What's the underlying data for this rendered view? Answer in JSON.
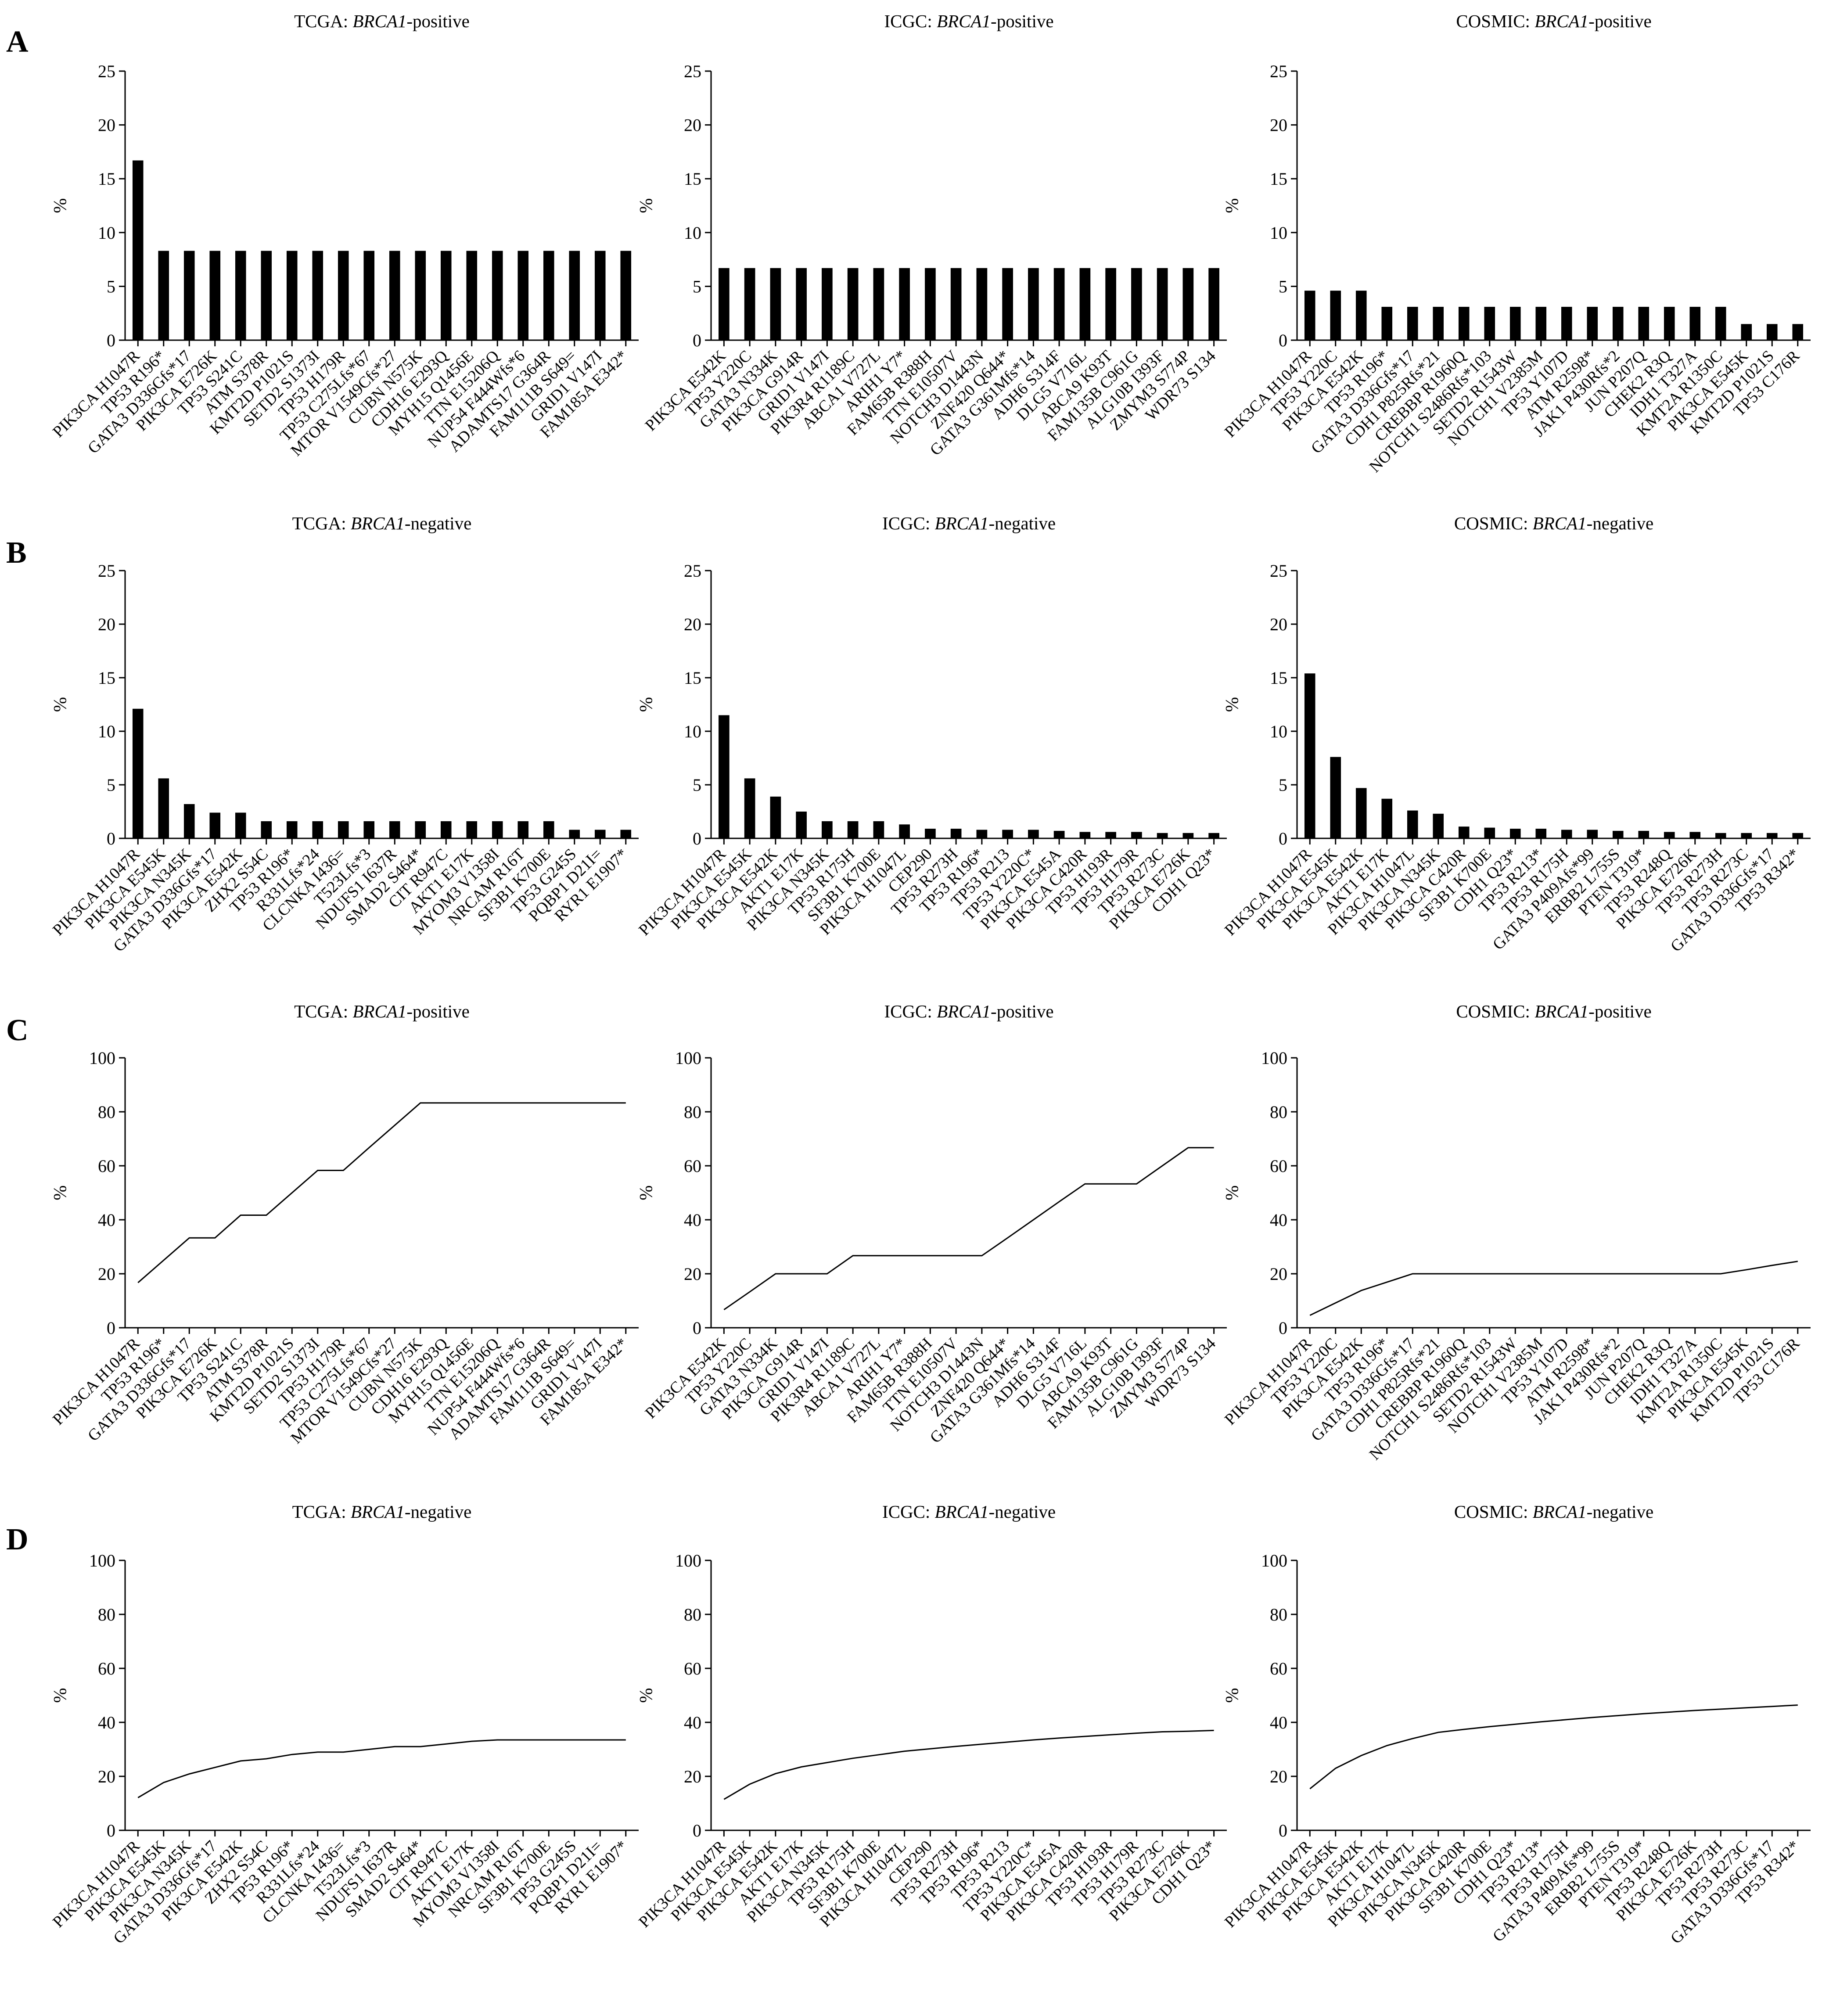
{
  "panel_labels": [
    "A",
    "B",
    "C",
    "D"
  ],
  "chart_data": [
    {
      "panel": "A",
      "type": "bar",
      "title_prefix": "TCGA: ",
      "title_gene": "BRCA1",
      "title_suffix": "-positive",
      "ylabel": "%",
      "ylim": [
        0,
        25
      ],
      "yticks": [
        0,
        5,
        10,
        15,
        20,
        25
      ],
      "categories": [
        "PIK3CA H1047R",
        "TP53 R196*",
        "GATA3 D336Gfs*17",
        "PIK3CA E726K",
        "TP53 S241C",
        "ATM S378R",
        "KMT2D P1021S",
        "SETD2 S1373I",
        "TP53 H179R",
        "TP53 C275Lfs*67",
        "MTOR V1549Cfs*27",
        "CUBN N575K",
        "CDH16 E293Q",
        "MYH15 Q1456E",
        "TTN E15206Q",
        "NUP54 F444Wfs*6",
        "ADAMTS17 G364R",
        "FAM111B S649=",
        "GRID1 V147I",
        "FAM185A E342*"
      ],
      "values": [
        16.7,
        8.3,
        8.3,
        8.3,
        8.3,
        8.3,
        8.3,
        8.3,
        8.3,
        8.3,
        8.3,
        8.3,
        8.3,
        8.3,
        8.3,
        8.3,
        8.3,
        8.3,
        8.3,
        8.3
      ]
    },
    {
      "panel": "A",
      "type": "bar",
      "title_prefix": "ICGC: ",
      "title_gene": "BRCA1",
      "title_suffix": "-positive",
      "ylabel": "%",
      "ylim": [
        0,
        25
      ],
      "yticks": [
        0,
        5,
        10,
        15,
        20,
        25
      ],
      "categories": [
        "PIK3CA E542K",
        "TP53 Y220C",
        "GATA3 N334K",
        "PIK3CA G914R",
        "GRID1 V147I",
        "PIK3R4 R1189C",
        "ABCA1 V727L",
        "ARIH1 Y7*",
        "FAM65B R388H",
        "TTN E10507V",
        "NOTCH3 D1443N",
        "ZNF420 Q644*",
        "GATA3 G361Mfs*14",
        "ADH6 S314F",
        "DLG5 V716L",
        "ABCA9 K93T",
        "FAM135B C961G",
        "ALG10B I393F",
        "ZMYM3 S774P",
        "WDR73 S134"
      ],
      "values": [
        6.7,
        6.7,
        6.7,
        6.7,
        6.7,
        6.7,
        6.7,
        6.7,
        6.7,
        6.7,
        6.7,
        6.7,
        6.7,
        6.7,
        6.7,
        6.7,
        6.7,
        6.7,
        6.7,
        6.7
      ]
    },
    {
      "panel": "A",
      "type": "bar",
      "title_prefix": "COSMIC: ",
      "title_gene": "BRCA1",
      "title_suffix": "-positive",
      "ylabel": "%",
      "ylim": [
        0,
        25
      ],
      "yticks": [
        0,
        5,
        10,
        15,
        20,
        25
      ],
      "categories": [
        "PIK3CA H1047R",
        "TP53 Y220C",
        "PIK3CA E542K",
        "TP53 R196*",
        "GATA3 D336Gfs*17",
        "CDH1 P825Rfs*21",
        "CREBBP R1960Q",
        "NOTCH1 S2486Rfs*103",
        "SETD2 R1543W",
        "NOTCH1 V2385M",
        "TP53 Y107D",
        "ATM R2598*",
        "JAK1 P430Rfs*2",
        "JUN P207Q",
        "CHEK2 R3Q",
        "IDH1 T327A",
        "KMT2A R1350C",
        "PIK3CA E545K",
        "KMT2D P1021S",
        "TP53 C176R"
      ],
      "values": [
        4.6,
        4.6,
        4.6,
        3.1,
        3.1,
        3.1,
        3.1,
        3.1,
        3.1,
        3.1,
        3.1,
        3.1,
        3.1,
        3.1,
        3.1,
        3.1,
        3.1,
        1.5,
        1.5,
        1.5
      ]
    },
    {
      "panel": "B",
      "type": "bar",
      "title_prefix": "TCGA: ",
      "title_gene": "BRCA1",
      "title_suffix": "-negative",
      "ylabel": "%",
      "ylim": [
        0,
        25
      ],
      "yticks": [
        0,
        5,
        10,
        15,
        20,
        25
      ],
      "categories": [
        "PIK3CA H1047R",
        "PIK3CA E545K",
        "PIK3CA N345K",
        "GATA3 D336Gfs*17",
        "PIK3CA E542K",
        "ZHX2 S54C",
        "TP53 R196*",
        "R331Lfs*24",
        "CLCNKA I436=",
        "T523Lfs*3",
        "NDUFS1 I637R",
        "SMAD2 S464*",
        "CIT R947C",
        "AKT1 E17K",
        "MYOM3 V1358I",
        "NRCAM R16T",
        "SF3B1 K700E",
        "TP53 G245S",
        "PQBP1 D21I=",
        "RYR1 E1907*"
      ],
      "values": [
        12.1,
        5.6,
        3.2,
        2.4,
        2.4,
        1.6,
        1.6,
        1.6,
        1.6,
        1.6,
        1.6,
        1.6,
        1.6,
        1.6,
        1.6,
        1.6,
        1.6,
        0.8,
        0.8,
        0.8
      ]
    },
    {
      "panel": "B",
      "type": "bar",
      "title_prefix": "ICGC: ",
      "title_gene": "BRCA1",
      "title_suffix": "-negative",
      "ylabel": "%",
      "ylim": [
        0,
        25
      ],
      "yticks": [
        0,
        5,
        10,
        15,
        20,
        25
      ],
      "categories": [
        "PIK3CA H1047R",
        "PIK3CA E545K",
        "PIK3CA E542K",
        "AKT1 E17K",
        "PIK3CA N345K",
        "TP53 R175H",
        "SF3B1 K700E",
        "PIK3CA H1047L",
        "CEP290",
        "TP53 R273H",
        "TP53 R196*",
        "TP53 R213",
        "TP53 Y220C*",
        "PIK3CA E545A",
        "PIK3CA C420R",
        "TP53 H193R",
        "TP53 H179R",
        "TP53 R273C",
        "PIK3CA E726K",
        "CDH1 Q23*"
      ],
      "values": [
        11.5,
        5.6,
        3.9,
        2.5,
        1.6,
        1.6,
        1.6,
        1.3,
        0.9,
        0.9,
        0.8,
        0.8,
        0.8,
        0.7,
        0.6,
        0.6,
        0.6,
        0.5,
        0.5,
        0.5
      ]
    },
    {
      "panel": "B",
      "type": "bar",
      "title_prefix": "COSMIC: ",
      "title_gene": "BRCA1",
      "title_suffix": "-negative",
      "ylabel": "%",
      "ylim": [
        0,
        25
      ],
      "yticks": [
        0,
        5,
        10,
        15,
        20,
        25
      ],
      "categories": [
        "PIK3CA H1047R",
        "PIK3CA E545K",
        "PIK3CA E542K",
        "AKT1 E17K",
        "PIK3CA H1047L",
        "PIK3CA N345K",
        "PIK3CA C420R",
        "SF3B1 K700E",
        "CDH1 Q23*",
        "TP53 R213*",
        "TP53 R175H",
        "GATA3 P409Afs*99",
        "ERBB2 L755S",
        "PTEN T319*",
        "TP53 R248Q",
        "PIK3CA E726K",
        "TP53 R273H",
        "TP53 R273C",
        "GATA3 D336Gfs*17",
        "TP53 R342*"
      ],
      "values": [
        15.4,
        7.6,
        4.7,
        3.7,
        2.6,
        2.3,
        1.1,
        1.0,
        0.9,
        0.9,
        0.8,
        0.8,
        0.7,
        0.7,
        0.6,
        0.6,
        0.5,
        0.5,
        0.5,
        0.5
      ]
    },
    {
      "panel": "C",
      "type": "line",
      "title_prefix": "TCGA: ",
      "title_gene": "BRCA1",
      "title_suffix": "-positive",
      "ylabel": "%",
      "ylim": [
        0,
        100
      ],
      "yticks": [
        0,
        20,
        40,
        60,
        80,
        100
      ],
      "categories": [
        "PIK3CA H1047R",
        "TP53 R196*",
        "GATA3 D336Gfs*17",
        "PIK3CA E726K",
        "TP53 S241C",
        "ATM S378R",
        "KMT2D P1021S",
        "SETD2 S1373I",
        "TP53 H179R",
        "TP53 C275Lfs*67",
        "MTOR V1549Cfs*27",
        "CUBN N575K",
        "CDH16 E293Q",
        "MYH15 Q1456E",
        "TTN E15206Q",
        "NUP54 F444Wfs*6",
        "ADAMTS17 G364R",
        "FAM111B S649=",
        "GRID1 V147I",
        "FAM185A E342*"
      ],
      "values": [
        16.7,
        25.0,
        33.3,
        33.3,
        41.7,
        41.7,
        50.0,
        58.3,
        58.3,
        66.7,
        75.0,
        83.3,
        83.3,
        83.3,
        83.3,
        83.3,
        83.3,
        83.3,
        83.3,
        83.3
      ]
    },
    {
      "panel": "C",
      "type": "line",
      "title_prefix": "ICGC: ",
      "title_gene": "BRCA1",
      "title_suffix": "-positive",
      "ylabel": "%",
      "ylim": [
        0,
        100
      ],
      "yticks": [
        0,
        20,
        40,
        60,
        80,
        100
      ],
      "categories": [
        "PIK3CA E542K",
        "TP53 Y220C",
        "GATA3 N334K",
        "PIK3CA G914R",
        "GRID1 V147I",
        "PIK3R4 R1189C",
        "ABCA1 V727L",
        "ARIH1 Y7*",
        "FAM65B R388H",
        "TTN E10507V",
        "NOTCH3 D1443N",
        "ZNF420 Q644*",
        "GATA3 G361Mfs*14",
        "ADH6 S314F",
        "DLG5 V716L",
        "ABCA9 K93T",
        "FAM135B C961G",
        "ALG10B I393F",
        "ZMYM3 S774P",
        "WDR73 S134"
      ],
      "values": [
        6.7,
        13.3,
        20.0,
        20.0,
        20.0,
        26.7,
        26.7,
        26.7,
        26.7,
        26.7,
        26.7,
        33.3,
        40.0,
        46.7,
        53.3,
        53.3,
        53.3,
        60.0,
        66.7,
        66.7
      ]
    },
    {
      "panel": "C",
      "type": "line",
      "title_prefix": "COSMIC: ",
      "title_gene": "BRCA1",
      "title_suffix": "-positive",
      "ylabel": "%",
      "ylim": [
        0,
        100
      ],
      "yticks": [
        0,
        20,
        40,
        60,
        80,
        100
      ],
      "categories": [
        "PIK3CA H1047R",
        "TP53 Y220C",
        "PIK3CA E542K",
        "TP53 R196*",
        "GATA3 D336Gfs*17",
        "CDH1 P825Rfs*21",
        "CREBBP R1960Q",
        "NOTCH1 S2486Rfs*103",
        "SETD2 R1543W",
        "NOTCH1 V2385M",
        "TP53 Y107D",
        "ATM R2598*",
        "JAK1 P430Rfs*2",
        "JUN P207Q",
        "CHEK2 R3Q",
        "IDH1 T327A",
        "KMT2A R1350C",
        "PIK3CA E545K",
        "KMT2D P1021S",
        "TP53 C176R"
      ],
      "values": [
        4.6,
        9.2,
        13.8,
        16.9,
        20.0,
        20.0,
        20.0,
        20.0,
        20.0,
        20.0,
        20.0,
        20.0,
        20.0,
        20.0,
        20.0,
        20.0,
        20.0,
        21.5,
        23.1,
        24.6
      ]
    },
    {
      "panel": "D",
      "type": "line",
      "title_prefix": "TCGA: ",
      "title_gene": "BRCA1",
      "title_suffix": "-negative",
      "ylabel": "%",
      "ylim": [
        0,
        100
      ],
      "yticks": [
        0,
        20,
        40,
        60,
        80,
        100
      ],
      "categories": [
        "PIK3CA H1047R",
        "PIK3CA E545K",
        "PIK3CA N345K",
        "GATA3 D336Gfs*17",
        "PIK3CA E542K",
        "ZHX2 S54C",
        "TP53 R196*",
        "R331Lfs*24",
        "CLCNKA I436=",
        "T523Lfs*3",
        "NDUFS1 I637R",
        "SMAD2 S464*",
        "CIT R947C",
        "AKT1 E17K",
        "MYOM3 V1358I",
        "NRCAM R16T",
        "SF3B1 K700E",
        "TP53 G245S",
        "PQBP1 D21I=",
        "RYR1 E1907*"
      ],
      "values": [
        12.1,
        17.7,
        20.9,
        23.3,
        25.7,
        26.5,
        28.1,
        29.0,
        29.0,
        30.0,
        31.0,
        31.0,
        32.0,
        33.0,
        33.5,
        33.5,
        33.5,
        33.5,
        33.5,
        33.5
      ]
    },
    {
      "panel": "D",
      "type": "line",
      "title_prefix": "ICGC: ",
      "title_gene": "BRCA1",
      "title_suffix": "-negative",
      "ylabel": "%",
      "ylim": [
        0,
        100
      ],
      "yticks": [
        0,
        20,
        40,
        60,
        80,
        100
      ],
      "categories": [
        "PIK3CA H1047R",
        "PIK3CA E545K",
        "PIK3CA E542K",
        "AKT1 E17K",
        "PIK3CA N345K",
        "TP53 R175H",
        "SF3B1 K700E",
        "PIK3CA H1047L",
        "CEP290",
        "TP53 R273H",
        "TP53 R196*",
        "TP53 R213",
        "TP53 Y220C*",
        "PIK3CA E545A",
        "PIK3CA C420R",
        "TP53 H193R",
        "TP53 H179R",
        "TP53 R273C",
        "PIK3CA E726K",
        "CDH1 Q23*"
      ],
      "values": [
        11.5,
        17.1,
        21.0,
        23.5,
        25.1,
        26.7,
        28.0,
        29.3,
        30.2,
        31.1,
        31.9,
        32.7,
        33.5,
        34.2,
        34.8,
        35.4,
        36.0,
        36.5,
        36.7,
        37.0
      ]
    },
    {
      "panel": "D",
      "type": "line",
      "title_prefix": "COSMIC: ",
      "title_gene": "BRCA1",
      "title_suffix": "-negative",
      "ylabel": "%",
      "ylim": [
        0,
        100
      ],
      "yticks": [
        0,
        20,
        40,
        60,
        80,
        100
      ],
      "categories": [
        "PIK3CA H1047R",
        "PIK3CA E545K",
        "PIK3CA E542K",
        "AKT1 E17K",
        "PIK3CA H1047L",
        "PIK3CA N345K",
        "PIK3CA C420R",
        "SF3B1 K700E",
        "CDH1 Q23*",
        "TP53 R213*",
        "TP53 R175H",
        "GATA3 P409Afs*99",
        "ERBB2 L755S",
        "PTEN T319*",
        "TP53 R248Q",
        "PIK3CA E726K",
        "TP53 R273H",
        "TP53 R273C",
        "GATA3 D336Gfs*17",
        "TP53 R342*"
      ],
      "values": [
        15.4,
        23.0,
        27.7,
        31.4,
        34.0,
        36.3,
        37.4,
        38.4,
        39.3,
        40.2,
        41.0,
        41.8,
        42.5,
        43.2,
        43.8,
        44.4,
        44.9,
        45.4,
        45.9,
        46.4
      ]
    }
  ]
}
